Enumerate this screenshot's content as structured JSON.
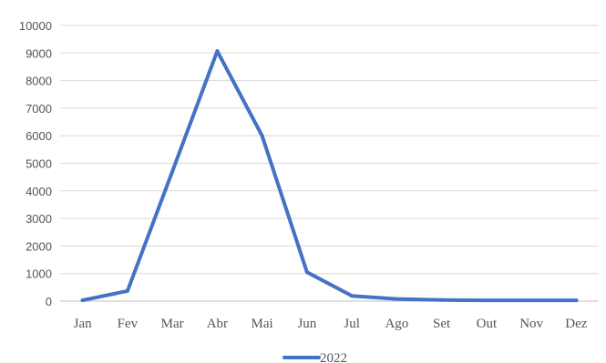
{
  "chart_data": {
    "type": "line",
    "categories": [
      "Jan",
      "Fev",
      "Mar",
      "Abr",
      "Mai",
      "Jun",
      "Jul",
      "Ago",
      "Set",
      "Out",
      "Nov",
      "Dez"
    ],
    "series": [
      {
        "name": "2022",
        "values": [
          30,
          370,
          4700,
          9070,
          6000,
          1050,
          190,
          80,
          40,
          30,
          30,
          30
        ],
        "color": "#4472c4"
      }
    ],
    "yticks": [
      "0",
      "1000",
      "2000",
      "3000",
      "4000",
      "5000",
      "6000",
      "7000",
      "8000",
      "9000",
      "10000"
    ],
    "ylim": [
      0,
      10000
    ],
    "grid": true,
    "legend_position": "bottom",
    "title": "",
    "xlabel": "",
    "ylabel": ""
  }
}
